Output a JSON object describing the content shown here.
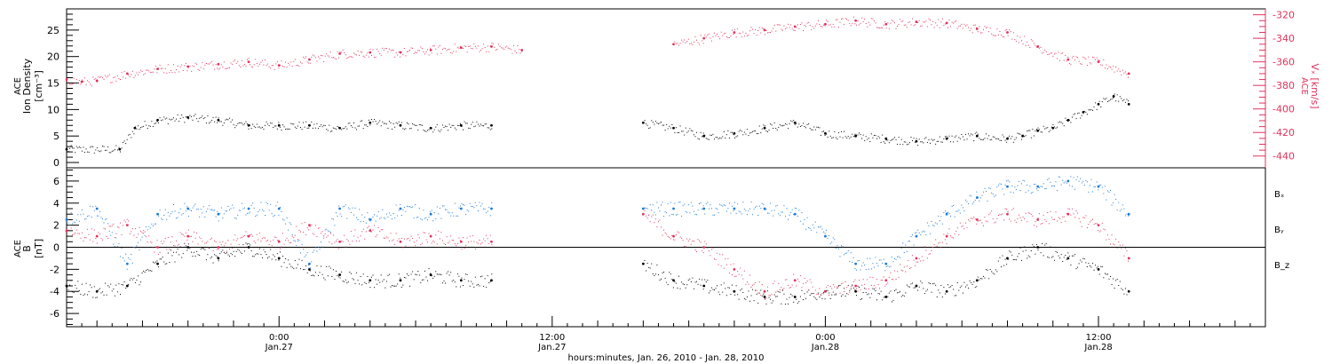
{
  "chart_data": [
    {
      "type": "scatter",
      "panel": "top",
      "ylabel_left": [
        "ACE",
        "Ion Density",
        "[cm⁻³]"
      ],
      "ylabel_right": [
        "ACE",
        "Vₓ [km/s]"
      ],
      "ylim_left": [
        -1,
        29
      ],
      "yticks_left": [
        "0",
        "5",
        "10",
        "15",
        "20",
        "25"
      ],
      "ylim_right": [
        -450,
        -315
      ],
      "yticks_right": [
        "-320",
        "-340",
        "-360",
        "-380",
        "-400",
        "-420",
        "-440"
      ],
      "colors": {
        "density": "#000000",
        "velocity": "#e0335d"
      },
      "series": [
        {
          "axis": "left",
          "x_hours": [
            0,
            3.5,
            4.5,
            6,
            8,
            10,
            12,
            14,
            16,
            18,
            20,
            22,
            24,
            26,
            28,
            30,
            32,
            34,
            36,
            38,
            40,
            42,
            44,
            46,
            48,
            50,
            52,
            54,
            56,
            58,
            60,
            62,
            63,
            64,
            65,
            66,
            67,
            68,
            69,
            70
          ],
          "y": [
            2.5,
            2.5,
            6.5,
            8,
            8.5,
            8,
            7,
            7,
            7,
            6.5,
            7.5,
            7,
            6.5,
            7,
            7,
            null,
            null,
            null,
            null,
            7.5,
            6.5,
            5,
            5.5,
            6.5,
            7.5,
            5.5,
            5,
            4.5,
            4,
            4.5,
            5,
            4.5,
            5,
            6,
            6.5,
            8,
            9.5,
            11,
            12.5,
            11
          ]
        },
        {
          "axis": "right",
          "x_hours": [
            0,
            1,
            2,
            4,
            6,
            8,
            10,
            12,
            14,
            16,
            18,
            20,
            22,
            24,
            26,
            28,
            30,
            32,
            34,
            36,
            38,
            40,
            42,
            44,
            46,
            48,
            50,
            52,
            54,
            56,
            58,
            60,
            62,
            64,
            66,
            68,
            70
          ],
          "y": [
            -375,
            -377,
            -376,
            -370,
            -366,
            -364,
            -362,
            -360,
            -363,
            -358,
            -353,
            -352,
            -352,
            -350,
            -348,
            -347,
            -350,
            null,
            null,
            null,
            null,
            -345,
            -340,
            -335,
            -333,
            -330,
            -328,
            -325,
            -328,
            -326,
            -327,
            -332,
            -335,
            -347,
            -358,
            -360,
            -370
          ]
        }
      ]
    },
    {
      "type": "scatter",
      "panel": "bottom",
      "ylabel_left": [
        "ACE",
        "B",
        "[nT]"
      ],
      "ylim": [
        -7.2,
        7.2
      ],
      "yticks": [
        "-6",
        "-4",
        "-2",
        "0",
        "2",
        "4",
        "6"
      ],
      "legend_labels": [
        "Bₓ",
        "Bᵧ",
        "B_z"
      ],
      "legend_colors": [
        "#000000",
        "#1a7ad6",
        "#e0335d"
      ],
      "series": [
        {
          "name": "Bₓ",
          "x_hours": [
            0,
            2,
            4,
            6,
            8,
            10,
            12,
            14,
            16,
            18,
            20,
            22,
            24,
            26,
            28,
            30,
            32,
            34,
            36,
            38,
            40,
            42,
            44,
            46,
            48,
            50,
            52,
            54,
            56,
            58,
            60,
            62,
            64,
            66,
            68,
            70
          ],
          "y": [
            -3.5,
            -4,
            -3.5,
            -1.5,
            0,
            -1,
            0,
            -1,
            -2,
            -2.5,
            -3,
            -3,
            -2.5,
            -3,
            -3,
            null,
            null,
            null,
            null,
            -1.5,
            -3,
            -3.5,
            -4,
            -4.5,
            -4.5,
            -4,
            -4,
            -4.5,
            -3.5,
            -4,
            -3,
            -1,
            0,
            -1,
            -2,
            -4
          ]
        },
        {
          "name": "Bᵧ",
          "x_hours": [
            0,
            2,
            4,
            6,
            8,
            10,
            12,
            14,
            16,
            18,
            20,
            22,
            24,
            26,
            28,
            30,
            32,
            34,
            36,
            38,
            40,
            42,
            44,
            46,
            48,
            50,
            52,
            54,
            56,
            58,
            60,
            62,
            64,
            66,
            68,
            70
          ],
          "y": [
            2.5,
            3.5,
            -1.5,
            3,
            3.5,
            3,
            3.5,
            3.5,
            -1.5,
            3.5,
            2.5,
            3.5,
            3,
            3.5,
            3.5,
            null,
            null,
            null,
            null,
            3.5,
            3.5,
            3.5,
            3.5,
            3.5,
            3,
            1,
            -1.5,
            -1.5,
            1,
            3,
            4.5,
            5.5,
            5.5,
            6,
            5.5,
            3
          ]
        },
        {
          "name": "B_z",
          "x_hours": [
            0,
            2,
            4,
            6,
            8,
            10,
            12,
            14,
            16,
            18,
            20,
            22,
            24,
            26,
            28,
            30,
            32,
            34,
            36,
            38,
            40,
            42,
            44,
            46,
            48,
            50,
            52,
            54,
            56,
            58,
            60,
            62,
            64,
            66,
            68,
            70
          ],
          "y": [
            1.5,
            1,
            2,
            0,
            1,
            0,
            1,
            0.5,
            2,
            0.5,
            1.5,
            0.5,
            1,
            0.5,
            0.5,
            null,
            null,
            null,
            null,
            3,
            1,
            0,
            -2,
            -4,
            -3,
            -4,
            -3.5,
            -3,
            -1,
            1,
            2.5,
            3,
            2.5,
            3,
            2,
            -1
          ]
        }
      ]
    }
  ],
  "xaxis": {
    "xlim_hours": [
      0,
      79
    ],
    "ticks": [
      {
        "hour": 14,
        "line1": "0:00",
        "line2": "Jan.27"
      },
      {
        "hour": 32,
        "line1": "12:00",
        "line2": "Jan.27"
      },
      {
        "hour": 50,
        "line1": "0:00",
        "line2": "Jan.28"
      },
      {
        "hour": 68,
        "line1": "12:00",
        "line2": "Jan.28"
      }
    ],
    "xlabel": "hours:minutes, Jan. 26, 2010 - Jan. 28, 2010"
  }
}
